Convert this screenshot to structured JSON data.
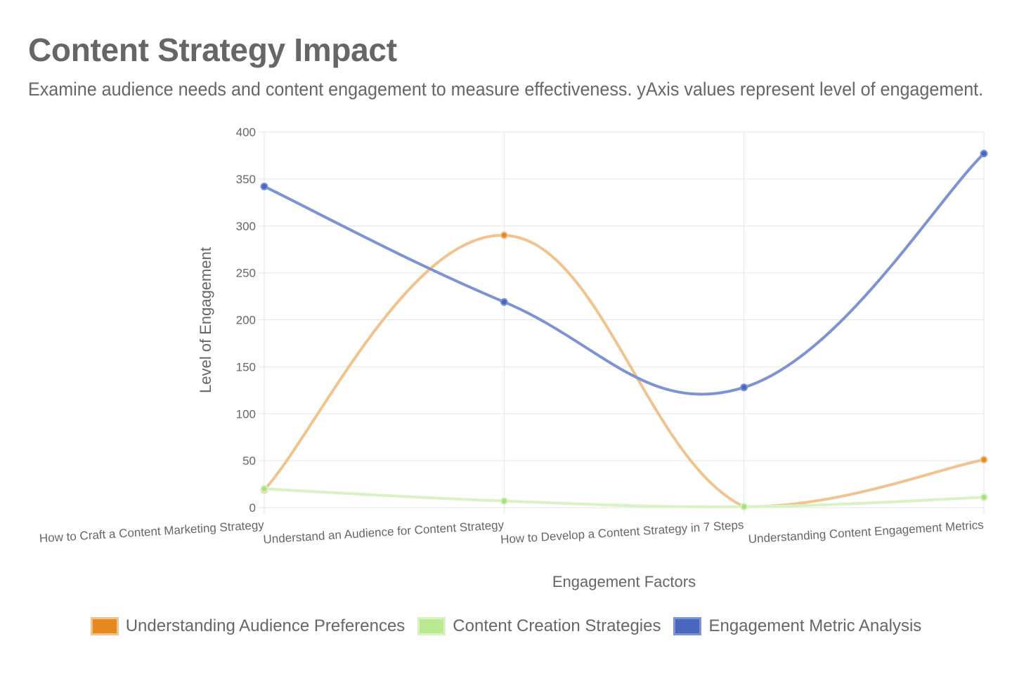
{
  "header": {
    "title": "Content Strategy Impact",
    "subtitle": "Examine audience needs and content engagement to measure effectiveness. yAxis values represent level of engagement."
  },
  "colors": {
    "grid": "#e6e6e6",
    "axis_text": "#666666"
  },
  "chart_data": {
    "type": "line",
    "title": "Content Strategy Impact",
    "xlabel": "Engagement Factors",
    "ylabel": "Level of Engagement",
    "ylim": [
      0,
      400
    ],
    "yticks": [
      0,
      50,
      100,
      150,
      200,
      250,
      300,
      350,
      400
    ],
    "grid": true,
    "legend_position": "bottom",
    "categories": [
      "How to Craft a Content Marketing Strategy",
      "Understand an Audience for Content Strategy",
      "How to Develop a Content Strategy in 7 Steps",
      "Understanding Content Engagement Metrics"
    ],
    "series": [
      {
        "name": "Understanding Audience Preferences",
        "values": [
          19,
          290,
          1,
          51
        ],
        "color": "#e68a1f",
        "line_color": "#f0c38f",
        "legend_fill": "#e68a1f",
        "legend_border": "#f0c38f"
      },
      {
        "name": "Content Creation Strategies",
        "values": [
          20,
          7,
          1,
          11
        ],
        "color": "#a8e07f",
        "line_color": "#d9f2c4",
        "legend_fill": "#b9ea92",
        "legend_border": "#d9f2c4"
      },
      {
        "name": "Engagement Metric Analysis",
        "values": [
          342,
          219,
          128,
          377
        ],
        "color": "#4a67c0",
        "line_color": "#7d93d2",
        "legend_fill": "#4a67c0",
        "legend_border": "#7d93d2"
      }
    ]
  }
}
